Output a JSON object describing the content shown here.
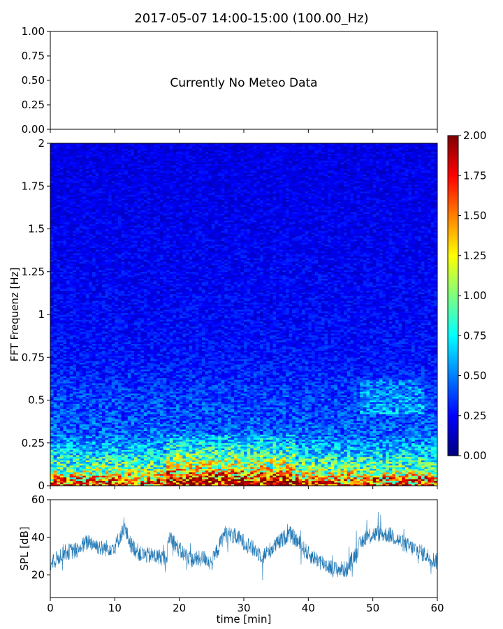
{
  "figure": {
    "title": "2017-05-07 14:00-15:00 (100.00_Hz)"
  },
  "chart_data": [
    {
      "type": "line",
      "panel": "meteo",
      "annotation": "Currently No Meteo Data",
      "ylim": [
        0,
        1
      ],
      "yticks": [
        "1.00",
        "0.75",
        "0.50",
        "0.25",
        "0.00"
      ],
      "series": []
    },
    {
      "type": "heatmap",
      "panel": "spectrogram",
      "ylabel": "FFT Frequenz [Hz]",
      "xlim": [
        0,
        60
      ],
      "ylim": [
        0,
        2
      ],
      "yticks": [
        "2",
        "1.75",
        "1.5",
        "1.25",
        "1",
        "0.75",
        "0.5",
        "0.25",
        "0"
      ],
      "colormap": "jet",
      "colorbar": {
        "range": [
          0,
          2
        ],
        "ticks": [
          "2.00",
          "1.75",
          "1.50",
          "1.25",
          "1.00",
          "0.75",
          "0.50",
          "0.25",
          "0.00"
        ],
        "colors": [
          "#00007f",
          "#0000ff",
          "#007fff",
          "#00ffff",
          "#7fff7f",
          "#ffff00",
          "#ff7f00",
          "#ff0000",
          "#7f0000"
        ]
      },
      "intensity_profile": {
        "frequency_hz": [
          0.0,
          0.05,
          0.1,
          0.15,
          0.2,
          0.25,
          0.3,
          0.4,
          0.5,
          0.6,
          0.75,
          1.0,
          1.5,
          2.0
        ],
        "typical_value": [
          1.6,
          1.3,
          0.95,
          0.8,
          0.65,
          0.55,
          0.45,
          0.4,
          0.38,
          0.33,
          0.28,
          0.25,
          0.22,
          0.2
        ]
      }
    },
    {
      "type": "line",
      "panel": "spl",
      "xlabel": "time [min]",
      "ylabel": "SPL [dB]",
      "xlim": [
        0,
        60
      ],
      "ylim": [
        8,
        60
      ],
      "xticks": [
        "0",
        "10",
        "20",
        "30",
        "40",
        "50",
        "60"
      ],
      "yticks": [
        "60",
        "40",
        "20"
      ],
      "color": "#1f77b4",
      "series": [
        {
          "x": [
            0,
            2,
            4,
            6,
            8,
            10,
            11.5,
            12.5,
            14,
            16,
            18,
            18.5,
            20,
            22,
            24,
            25,
            27,
            29,
            31,
            33,
            35,
            37,
            38,
            40,
            42,
            44,
            46,
            48,
            49,
            51,
            53,
            55,
            57,
            59,
            60
          ],
          "y": [
            25,
            32,
            33,
            38,
            34,
            35,
            45,
            36,
            31,
            30,
            29,
            41,
            33,
            28,
            29,
            26,
            42,
            40,
            35,
            30,
            36,
            42,
            39,
            31,
            27,
            23,
            23,
            36,
            41,
            42,
            41,
            36,
            33,
            29,
            27
          ]
        }
      ]
    }
  ]
}
